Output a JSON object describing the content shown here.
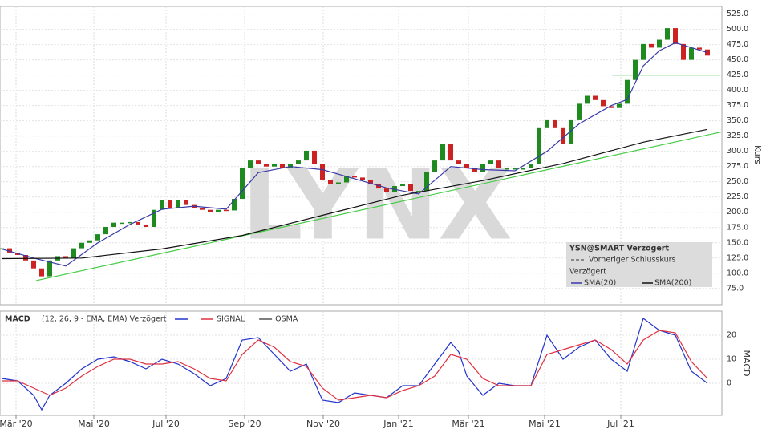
{
  "chart_data": [
    {
      "type": "candlestick",
      "title": "YSN@SMART Verzögert",
      "y_label": "Kurs",
      "watermark": "LYNX",
      "previous_close_label": "Vorheriger Schlusskurs",
      "delay_label": "Verzögert",
      "color_up": "#1f8a1f",
      "color_down": "#cc2222",
      "values": [
        141,
        134,
        130,
        121,
        108,
        95,
        121,
        128,
        125,
        141,
        150,
        154,
        164,
        176,
        183,
        183,
        184,
        180,
        176,
        204,
        220,
        207,
        220,
        212,
        207,
        204,
        200,
        204,
        203,
        222,
        272,
        285,
        279,
        275,
        279,
        272,
        279,
        285,
        301,
        279,
        253,
        246,
        249,
        259,
        257,
        253,
        246,
        239,
        233,
        243,
        246,
        235,
        235,
        266,
        285,
        312,
        285,
        279,
        272,
        266,
        279,
        285,
        272,
        272,
        272,
        272,
        279,
        338,
        351,
        338,
        312,
        351,
        378,
        391,
        384,
        374,
        371,
        378,
        417,
        450,
        476,
        470,
        483,
        502,
        476,
        450,
        470,
        467,
        457
      ],
      "xlim": [
        -0.2,
        89.8
      ],
      "ylim": [
        55,
        535
      ],
      "yticks": [
        {
          "value": 75,
          "label": "75.0"
        },
        {
          "value": 100,
          "label": "100.0"
        },
        {
          "value": 125,
          "label": "125.0"
        },
        {
          "value": 150,
          "label": "150.0"
        },
        {
          "value": 175,
          "label": "175.0"
        },
        {
          "value": 200,
          "label": "200.0"
        },
        {
          "value": 225,
          "label": "225.0"
        },
        {
          "value": 250,
          "label": "250.0"
        },
        {
          "value": 275,
          "label": "275.0"
        },
        {
          "value": 300,
          "label": "300.0"
        },
        {
          "value": 325,
          "label": "325.0"
        },
        {
          "value": 350,
          "label": "350.0"
        },
        {
          "value": 375,
          "label": "375.0"
        },
        {
          "value": 400,
          "label": "400.0"
        },
        {
          "value": 425,
          "label": "425.0"
        },
        {
          "value": 450,
          "label": "450.0"
        },
        {
          "value": 475,
          "label": "475.0"
        },
        {
          "value": 500,
          "label": "500.0"
        },
        {
          "value": 525,
          "label": "525.0"
        }
      ],
      "series": [
        {
          "name": "SMA(20)",
          "color": "#3a3aa8",
          "x": [
            0,
            4,
            8,
            12,
            16,
            20,
            24,
            28,
            32,
            36,
            40,
            44,
            48,
            52,
            56,
            60,
            64,
            68,
            72,
            76,
            78,
            80,
            82,
            84,
            86,
            88
          ],
          "values": [
            140,
            125,
            112,
            150,
            180,
            205,
            210,
            205,
            265,
            275,
            270,
            255,
            240,
            230,
            275,
            270,
            268,
            300,
            345,
            375,
            385,
            440,
            465,
            478,
            470,
            462
          ]
        },
        {
          "name": "SMA(200)",
          "color": "#111111",
          "x": [
            0,
            10,
            20,
            30,
            40,
            50,
            60,
            70,
            80,
            88
          ],
          "values": [
            124,
            125,
            140,
            162,
            195,
            228,
            252,
            280,
            315,
            336
          ]
        }
      ],
      "trendlines": [
        {
          "color": "#44cc44",
          "x": [
            4.3,
            89.8
          ],
          "values": [
            88,
            332
          ]
        },
        {
          "color": "#44cc44",
          "x": [
            76.1,
            89.6
          ],
          "values": [
            425,
            425
          ]
        }
      ]
    },
    {
      "type": "line",
      "title": "MACD",
      "subtitle": "(12, 26, 9 - EMA, EMA) Verzögert",
      "y_label": "MACD",
      "xlim": [
        -0.2,
        89.8
      ],
      "ylim": [
        -13,
        30
      ],
      "yticks": [
        0,
        10,
        20
      ],
      "xticks": [
        {
          "value": 1.8,
          "label": "Mär '20"
        },
        {
          "value": 11.5,
          "label": "Mai '20"
        },
        {
          "value": 20.5,
          "label": "Jul '20"
        },
        {
          "value": 30.3,
          "label": "Sep '20"
        },
        {
          "value": 40.1,
          "label": "Nov '20"
        },
        {
          "value": 49.5,
          "label": "Jan '21"
        },
        {
          "value": 58.2,
          "label": "Mär '21"
        },
        {
          "value": 67.7,
          "label": "Mai '21"
        },
        {
          "value": 77.2,
          "label": "Jul '21"
        }
      ],
      "series": [
        {
          "color": "#2233cc",
          "x": [
            0,
            2,
            4,
            5,
            6,
            8,
            10,
            12,
            14,
            16,
            18,
            20,
            22,
            24,
            26,
            28,
            30,
            32,
            34,
            36,
            38,
            40,
            42,
            44,
            46,
            48,
            50,
            52,
            54,
            56,
            57,
            58,
            60,
            62,
            64,
            66,
            68,
            70,
            72,
            74,
            76,
            78,
            80,
            82,
            84,
            86,
            88
          ],
          "values": [
            2,
            1,
            -5,
            -11,
            -5,
            0,
            6,
            10,
            11,
            9,
            6,
            10,
            8,
            4,
            -1,
            2,
            18,
            19,
            12,
            5,
            8,
            -7,
            -8,
            -4,
            -5,
            -6,
            -1,
            -1,
            8,
            17,
            13,
            3,
            -5,
            0,
            -1,
            -1,
            20,
            10,
            15,
            18,
            10,
            5,
            27,
            22,
            20,
            5,
            0
          ]
        },
        {
          "name": "SIGNAL",
          "color": "#e03040",
          "x": [
            0,
            2,
            4,
            6,
            8,
            10,
            12,
            14,
            16,
            18,
            20,
            22,
            24,
            26,
            28,
            30,
            32,
            34,
            36,
            38,
            40,
            42,
            44,
            46,
            48,
            50,
            52,
            54,
            56,
            58,
            60,
            62,
            64,
            66,
            68,
            70,
            72,
            74,
            76,
            78,
            80,
            82,
            84,
            86,
            88
          ],
          "values": [
            1,
            1,
            -2,
            -5,
            -2,
            3,
            7,
            10,
            10,
            8,
            8,
            9,
            6,
            2,
            1,
            12,
            18,
            15,
            9,
            7,
            -2,
            -7,
            -6,
            -5,
            -6,
            -3,
            -1,
            3,
            12,
            10,
            2,
            -1,
            -1,
            -1,
            12,
            14,
            16,
            18,
            14,
            8,
            18,
            22,
            21,
            9,
            2
          ]
        },
        {
          "name": "OSMA",
          "color": "#555555",
          "x": [],
          "values": []
        }
      ]
    }
  ]
}
